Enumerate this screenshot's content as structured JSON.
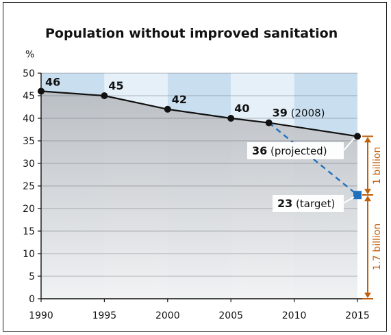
{
  "chart_data": {
    "type": "line",
    "title": "Population without improved sanitation",
    "ylabel": "%",
    "xlabel": "",
    "xlim": [
      1990,
      2015
    ],
    "ylim": [
      0,
      50
    ],
    "xticks": [
      1990,
      1995,
      2000,
      2005,
      2010,
      2015
    ],
    "yticks": [
      0,
      5,
      10,
      15,
      20,
      25,
      30,
      35,
      40,
      45,
      50
    ],
    "grid": true,
    "series": [
      {
        "points": [
          {
            "x": 1990,
            "y": 46,
            "label": "46"
          },
          {
            "x": 1995,
            "y": 45,
            "label": "45"
          },
          {
            "x": 2000,
            "y": 42,
            "label": "42"
          },
          {
            "x": 2005,
            "y": 40,
            "label": "40"
          },
          {
            "x": 2008,
            "y": 39,
            "label": "39",
            "suffix": "(2008)"
          },
          {
            "x": 2015,
            "y": 36,
            "label": "36",
            "suffix": "(projected)"
          }
        ],
        "color": "#111111"
      },
      {
        "style": "dashed",
        "points": [
          {
            "x": 2008,
            "y": 39
          },
          {
            "x": 2015,
            "y": 23,
            "label": "23",
            "suffix": "(target)"
          }
        ],
        "color": "#1f6fbf"
      }
    ],
    "brackets": [
      {
        "label": "1 billion",
        "from": 23,
        "to": 36
      },
      {
        "label": "1.7 billion",
        "from": 0,
        "to": 23
      }
    ],
    "colors": {
      "area": "#c8ccd0",
      "band_dark": "#c9dff0",
      "band_light": "#e6f0f8",
      "bracket": "#c0600c",
      "target_marker": "#1f6fbf"
    }
  }
}
